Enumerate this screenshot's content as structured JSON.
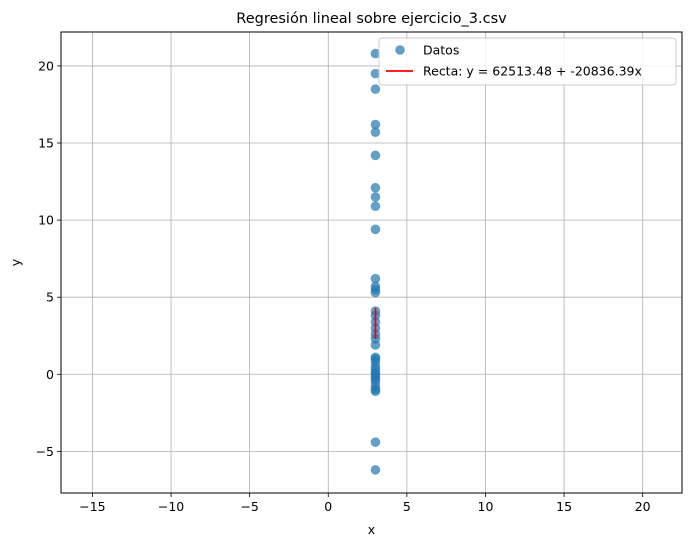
{
  "chart_data": {
    "type": "scatter",
    "title": "Regresión lineal sobre ejercicio_3.csv",
    "xlabel": "x",
    "ylabel": "y",
    "xlim": [
      -17,
      22.5
    ],
    "ylim": [
      -7.7,
      22.2
    ],
    "xticks": [
      -15,
      -10,
      -5,
      0,
      5,
      10,
      15,
      20
    ],
    "yticks": [
      -5,
      0,
      5,
      10,
      15,
      20
    ],
    "xtick_labels": [
      "−15",
      "−10",
      "−5",
      "0",
      "5",
      "10",
      "15",
      "20"
    ],
    "ytick_labels": [
      "−5",
      "0",
      "5",
      "10",
      "15",
      "20"
    ],
    "grid": true,
    "legend_position": "top-right",
    "series": [
      {
        "name": "Datos",
        "kind": "scatter",
        "color": "#1f77b4",
        "x": [
          3,
          3,
          3,
          3,
          3,
          3,
          3,
          3,
          3,
          3,
          3,
          3,
          3,
          3,
          3,
          3,
          3,
          3,
          3,
          3,
          3,
          3,
          3,
          3,
          3,
          3,
          3,
          3,
          3,
          3,
          3,
          3,
          3,
          3,
          3,
          3
        ],
        "y": [
          20.8,
          19.5,
          18.5,
          16.2,
          15.7,
          14.2,
          12.1,
          11.5,
          10.9,
          9.4,
          6.2,
          5.7,
          5.5,
          5.3,
          4.1,
          3.8,
          3.4,
          3.0,
          2.6,
          2.3,
          1.9,
          1.1,
          1.0,
          0.8,
          0.5,
          0.3,
          0.1,
          0.0,
          -0.2,
          -0.3,
          -0.5,
          -0.8,
          -1.0,
          -1.1,
          -4.4,
          -6.2
        ]
      },
      {
        "name": "Recta: y = 62513.48 + -20836.39x",
        "kind": "line",
        "color": "#ff0000",
        "x": [
          3.0,
          3.0
        ],
        "y": [
          4.3,
          2.3
        ]
      }
    ]
  }
}
